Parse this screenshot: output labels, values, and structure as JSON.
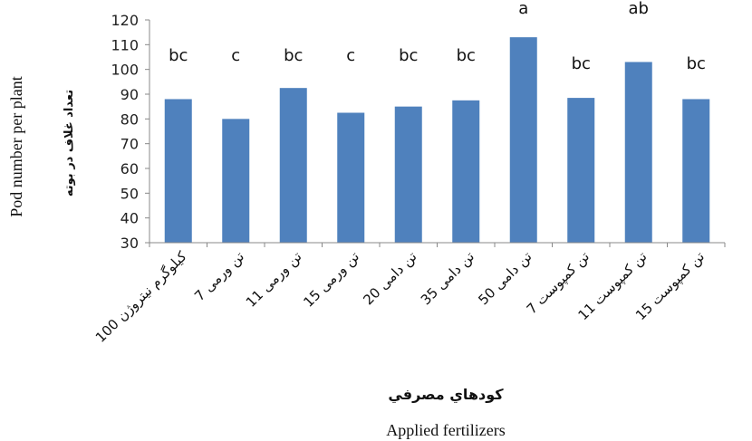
{
  "chart_data": {
    "type": "bar",
    "categories": [
      "100 کیلوگرم نیتروژن",
      "7 تن ورمی",
      "11 تن ورمی",
      "15 تن ورمی",
      "20 تن دامی",
      "35 تن دامی",
      "50 تن دامی",
      "7 تن کمپوست",
      "11 تن کمپوست",
      "15 تن کمپوست"
    ],
    "values": [
      88,
      80,
      92.5,
      82.5,
      85,
      87.5,
      113,
      88.5,
      103,
      88
    ],
    "significance_letters": [
      "bc",
      "c",
      "bc",
      "c",
      "bc",
      "bc",
      "a",
      "bc",
      "ab",
      "bc"
    ],
    "ylim": [
      30,
      120
    ],
    "yticks": [
      30,
      40,
      50,
      60,
      70,
      80,
      90,
      100,
      110,
      120
    ],
    "ylabel_fa": "تعداد غلاف در بوته",
    "ylabel_en": "Pod number per plant",
    "xlabel_fa": "كودهاي مصرفي",
    "xlabel_en": "Applied fertilizers",
    "bar_color": "#4f81bd",
    "grid": false
  }
}
